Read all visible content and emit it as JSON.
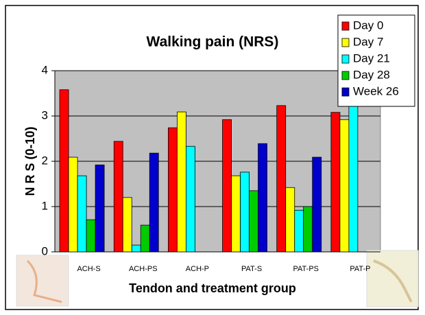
{
  "chart_data": {
    "type": "bar",
    "title": "Walking pain (NRS)",
    "x_label": "Tendon and treatment group",
    "y_label": "N R S (0-10)",
    "categories": [
      "ACH-S",
      "ACH-PS",
      "ACH-P",
      "PAT-S",
      "PAT-PS",
      "PAT-P"
    ],
    "series": [
      {
        "name": "Day 0",
        "color": "#ff0000",
        "values": [
          3.58,
          2.44,
          2.74,
          2.92,
          3.23,
          3.08
        ]
      },
      {
        "name": "Day 7",
        "color": "#ffff00",
        "values": [
          2.09,
          1.2,
          3.09,
          1.68,
          1.42,
          2.92
        ]
      },
      {
        "name": "Day 21",
        "color": "#00ffff",
        "values": [
          1.68,
          0.15,
          2.33,
          1.76,
          0.92,
          3.4
        ]
      },
      {
        "name": "Day 28",
        "color": "#00cc00",
        "values": [
          0.71,
          0.59,
          null,
          1.35,
          1.0,
          null
        ]
      },
      {
        "name": "Week 26",
        "color": "#0000cc",
        "values": [
          1.92,
          2.18,
          null,
          2.39,
          2.09,
          null
        ]
      }
    ],
    "ylim": [
      0,
      4
    ],
    "yticks": [
      0,
      1,
      2,
      3,
      4
    ],
    "grid": true,
    "legend": "top-right"
  }
}
